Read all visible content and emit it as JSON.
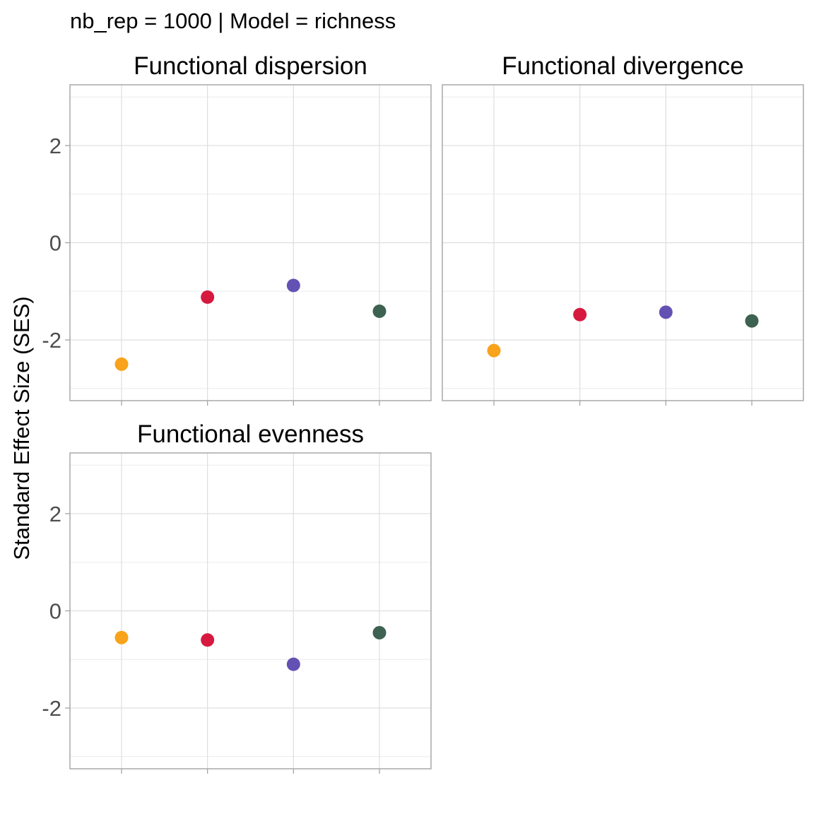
{
  "chart_data": {
    "type": "scatter",
    "title": "nb_rep = 1000 | Model = richness",
    "xlabel": "",
    "ylabel": "Standard Effect Size (SES)",
    "ylim": [
      -3.25,
      3.25
    ],
    "yticks": [
      "2",
      "0",
      "-2"
    ],
    "ytick_values": [
      2,
      0,
      -2
    ],
    "grid": true,
    "legend": "none",
    "point_colors": [
      "#f8a31b",
      "#d7193f",
      "#6351b3",
      "#3e6251"
    ],
    "panels": [
      {
        "title": "Functional dispersion",
        "values": [
          -2.5,
          -1.12,
          -0.88,
          -1.41
        ]
      },
      {
        "title": "Functional divergence",
        "values": [
          -2.22,
          -1.48,
          -1.43,
          -1.61
        ]
      },
      {
        "title": "Functional evenness",
        "values": [
          -0.55,
          -0.6,
          -1.1,
          -0.45
        ]
      }
    ]
  }
}
